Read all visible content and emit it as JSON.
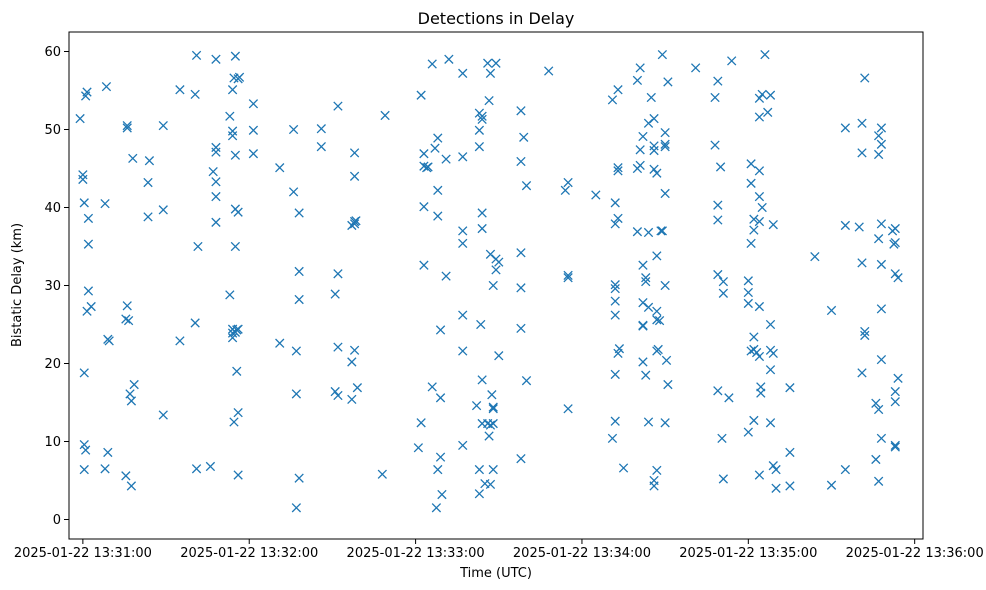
{
  "chart_data": {
    "type": "scatter",
    "title": "Detections in Delay",
    "xlabel": "Time (UTC)",
    "ylabel": "Bistatic Delay (km)",
    "marker": "x",
    "color": "#1f77b4",
    "grid": false,
    "xlim": [
      -5,
      303
    ],
    "ylim": [
      -2.5,
      62.5
    ],
    "x_unit": "seconds after 2025-01-22 13:31:00",
    "x_ticks": [
      {
        "value": 0,
        "label": "2025-01-22 13:31:00"
      },
      {
        "value": 60,
        "label": "2025-01-22 13:32:00"
      },
      {
        "value": 120,
        "label": "2025-01-22 13:33:00"
      },
      {
        "value": 180,
        "label": "2025-01-22 13:34:00"
      },
      {
        "value": 240,
        "label": "2025-01-22 13:35:00"
      },
      {
        "value": 300,
        "label": "2025-01-22 13:36:00"
      }
    ],
    "y_ticks": [
      {
        "value": 0,
        "label": "0"
      },
      {
        "value": 10,
        "label": "10"
      },
      {
        "value": 20,
        "label": "20"
      },
      {
        "value": 30,
        "label": "30"
      },
      {
        "value": 40,
        "label": "40"
      },
      {
        "value": 50,
        "label": "50"
      },
      {
        "value": 60,
        "label": "60"
      }
    ],
    "points": [
      [
        -1,
        51.4
      ],
      [
        0,
        44.2
      ],
      [
        0,
        43.6
      ],
      [
        0.5,
        40.6
      ],
      [
        0.5,
        18.8
      ],
      [
        1,
        54.3
      ],
      [
        1.5,
        54.8
      ],
      [
        0.5,
        9.6
      ],
      [
        1,
        8.9
      ],
      [
        0.5,
        6.4
      ],
      [
        2,
        38.6
      ],
      [
        2,
        35.3
      ],
      [
        2,
        29.3
      ],
      [
        1.5,
        26.7
      ],
      [
        3,
        27.3
      ],
      [
        8.5,
        55.5
      ],
      [
        8,
        40.5
      ],
      [
        9,
        23.1
      ],
      [
        9.5,
        22.9
      ],
      [
        9,
        8.6
      ],
      [
        8,
        6.5
      ],
      [
        16,
        50.5
      ],
      [
        16,
        50.2
      ],
      [
        16,
        27.4
      ],
      [
        15.5,
        25.7
      ],
      [
        16.5,
        25.5
      ],
      [
        17,
        16.1
      ],
      [
        17.5,
        15.2
      ],
      [
        17.5,
        4.3
      ],
      [
        15.5,
        5.6
      ],
      [
        18,
        46.3
      ],
      [
        18.5,
        17.3
      ],
      [
        24,
        46.0
      ],
      [
        23.5,
        43.2
      ],
      [
        23.5,
        38.8
      ],
      [
        29,
        50.5
      ],
      [
        29,
        39.7
      ],
      [
        29,
        13.4
      ],
      [
        35,
        55.1
      ],
      [
        35,
        22.9
      ],
      [
        41,
        59.5
      ],
      [
        40.5,
        54.5
      ],
      [
        41.5,
        35.0
      ],
      [
        40.5,
        25.2
      ],
      [
        41,
        6.5
      ],
      [
        46,
        6.8
      ],
      [
        48,
        59.0
      ],
      [
        47,
        44.6
      ],
      [
        48,
        47.7
      ],
      [
        48,
        47.1
      ],
      [
        48,
        43.3
      ],
      [
        48,
        41.4
      ],
      [
        48,
        38.1
      ],
      [
        53,
        51.7
      ],
      [
        54.5,
        56.6
      ],
      [
        54,
        55.1
      ],
      [
        54,
        49.8
      ],
      [
        54,
        49.2
      ],
      [
        55,
        46.7
      ],
      [
        55,
        39.8
      ],
      [
        55,
        35.0
      ],
      [
        53,
        28.8
      ],
      [
        54,
        24.4
      ],
      [
        54,
        23.9
      ],
      [
        54,
        23.3
      ],
      [
        55.5,
        24.3
      ],
      [
        56,
        24.4
      ],
      [
        55,
        24.0
      ],
      [
        54.5,
        12.5
      ],
      [
        56,
        13.7
      ],
      [
        55.5,
        19.0
      ],
      [
        56,
        5.7
      ],
      [
        55,
        59.4
      ],
      [
        56.5,
        56.7
      ],
      [
        56,
        56.5
      ],
      [
        56,
        39.4
      ],
      [
        61.5,
        53.3
      ],
      [
        61.5,
        49.9
      ],
      [
        61.5,
        46.9
      ],
      [
        71,
        45.1
      ],
      [
        71,
        22.6
      ],
      [
        76,
        50.0
      ],
      [
        76,
        42.0
      ],
      [
        78,
        39.3
      ],
      [
        78,
        31.8
      ],
      [
        78,
        28.2
      ],
      [
        77,
        21.6
      ],
      [
        77,
        16.1
      ],
      [
        78,
        5.3
      ],
      [
        77,
        1.5
      ],
      [
        86,
        50.1
      ],
      [
        86,
        47.8
      ],
      [
        92,
        53.0
      ],
      [
        92,
        31.5
      ],
      [
        91,
        28.9
      ],
      [
        92,
        22.1
      ],
      [
        91,
        16.4
      ],
      [
        92,
        15.9
      ],
      [
        97,
        20.2
      ],
      [
        97,
        15.4
      ],
      [
        98,
        47.0
      ],
      [
        98,
        44.0
      ],
      [
        98,
        38.2
      ],
      [
        97,
        37.7
      ],
      [
        98,
        37.9
      ],
      [
        98.5,
        38.3
      ],
      [
        98,
        21.7
      ],
      [
        99,
        16.9
      ],
      [
        109,
        51.8
      ],
      [
        108,
        5.8
      ],
      [
        122,
        54.4
      ],
      [
        123,
        46.9
      ],
      [
        123,
        45.3
      ],
      [
        124,
        45.1
      ],
      [
        124.5,
        45.2
      ],
      [
        123,
        40.1
      ],
      [
        123,
        32.6
      ],
      [
        122,
        12.4
      ],
      [
        121,
        9.2
      ],
      [
        126,
        58.4
      ],
      [
        127,
        47.6
      ],
      [
        128,
        48.9
      ],
      [
        128,
        42.2
      ],
      [
        128,
        38.9
      ],
      [
        129,
        24.3
      ],
      [
        129,
        15.6
      ],
      [
        129,
        8.0
      ],
      [
        128,
        6.4
      ],
      [
        127.5,
        1.5
      ],
      [
        129.5,
        3.2
      ],
      [
        126,
        17.0
      ],
      [
        131,
        46.2
      ],
      [
        131,
        31.2
      ],
      [
        132,
        59.0
      ],
      [
        137,
        57.2
      ],
      [
        137,
        46.5
      ],
      [
        137,
        37.0
      ],
      [
        137,
        35.4
      ],
      [
        137,
        26.2
      ],
      [
        137,
        21.6
      ],
      [
        137,
        9.5
      ],
      [
        142,
        14.6
      ],
      [
        143,
        52.1
      ],
      [
        144,
        51.7
      ],
      [
        144,
        51.3
      ],
      [
        143,
        49.9
      ],
      [
        143,
        47.8
      ],
      [
        144,
        39.3
      ],
      [
        144,
        37.3
      ],
      [
        143.5,
        25.0
      ],
      [
        144,
        17.9
      ],
      [
        144,
        12.3
      ],
      [
        143,
        6.4
      ],
      [
        143,
        3.3
      ],
      [
        146,
        58.5
      ],
      [
        147,
        57.2
      ],
      [
        146.5,
        53.7
      ],
      [
        147,
        34.0
      ],
      [
        147.5,
        16.0
      ],
      [
        146.5,
        10.7
      ],
      [
        146,
        12.3
      ],
      [
        147,
        12.1
      ],
      [
        148,
        12.3
      ],
      [
        148,
        14.2
      ],
      [
        148,
        14.4
      ],
      [
        145,
        4.6
      ],
      [
        147,
        4.5
      ],
      [
        148,
        6.4
      ],
      [
        148,
        30.0
      ],
      [
        149,
        33.4
      ],
      [
        149,
        32.0
      ],
      [
        150,
        33.0
      ],
      [
        150,
        21.0
      ],
      [
        149,
        58.5
      ],
      [
        158,
        52.4
      ],
      [
        158,
        45.9
      ],
      [
        159,
        49.0
      ],
      [
        160,
        42.8
      ],
      [
        158,
        34.2
      ],
      [
        158,
        29.7
      ],
      [
        158,
        24.5
      ],
      [
        158,
        7.8
      ],
      [
        160,
        17.8
      ],
      [
        168,
        57.5
      ],
      [
        174,
        42.2
      ],
      [
        175,
        43.2
      ],
      [
        175,
        31.3
      ],
      [
        175,
        31.0
      ],
      [
        175,
        14.2
      ],
      [
        185,
        41.6
      ],
      [
        191,
        53.8
      ],
      [
        193,
        55.1
      ],
      [
        193,
        45.1
      ],
      [
        193,
        44.7
      ],
      [
        192,
        40.6
      ],
      [
        193,
        38.6
      ],
      [
        192,
        37.9
      ],
      [
        192,
        30.1
      ],
      [
        192,
        29.6
      ],
      [
        192,
        28.0
      ],
      [
        192,
        26.2
      ],
      [
        192,
        18.6
      ],
      [
        192,
        12.6
      ],
      [
        193,
        21.3
      ],
      [
        193.5,
        21.9
      ],
      [
        195,
        6.6
      ],
      [
        191,
        10.4
      ],
      [
        200,
        56.3
      ],
      [
        201,
        57.9
      ],
      [
        200,
        36.9
      ],
      [
        201,
        45.4
      ],
      [
        200,
        45.0
      ],
      [
        201,
        47.4
      ],
      [
        202,
        49.1
      ],
      [
        202,
        32.6
      ],
      [
        202,
        27.8
      ],
      [
        202,
        24.9
      ],
      [
        202,
        24.8
      ],
      [
        203,
        30.5
      ],
      [
        203,
        31.0
      ],
      [
        202,
        20.2
      ],
      [
        203,
        18.5
      ],
      [
        204,
        36.8
      ],
      [
        204,
        27.2
      ],
      [
        204,
        12.5
      ],
      [
        204,
        50.8
      ],
      [
        205,
        54.1
      ],
      [
        206,
        51.4
      ],
      [
        206,
        47.9
      ],
      [
        206,
        47.3
      ],
      [
        206,
        44.9
      ],
      [
        207,
        44.4
      ],
      [
        207,
        33.8
      ],
      [
        207,
        26.7
      ],
      [
        207,
        25.6
      ],
      [
        207,
        21.6
      ],
      [
        207.5,
        21.8
      ],
      [
        207,
        6.3
      ],
      [
        206,
        5.0
      ],
      [
        206,
        4.3
      ],
      [
        208,
        25.5
      ],
      [
        208.5,
        37.0
      ],
      [
        209,
        59.6
      ],
      [
        210,
        49.6
      ],
      [
        210,
        48.1
      ],
      [
        210,
        47.8
      ],
      [
        210,
        41.8
      ],
      [
        209,
        37.0
      ],
      [
        210,
        30.0
      ],
      [
        210,
        12.4
      ],
      [
        210.5,
        20.4
      ],
      [
        211,
        17.3
      ],
      [
        211,
        56.1
      ],
      [
        221,
        57.9
      ],
      [
        228,
        54.1
      ],
      [
        229,
        56.2
      ],
      [
        228,
        48.0
      ],
      [
        229,
        40.3
      ],
      [
        229,
        38.4
      ],
      [
        229,
        31.4
      ],
      [
        230,
        45.2
      ],
      [
        231,
        30.5
      ],
      [
        231,
        29.0
      ],
      [
        229,
        16.5
      ],
      [
        230.5,
        10.4
      ],
      [
        231,
        5.2
      ],
      [
        233,
        15.6
      ],
      [
        234,
        58.8
      ],
      [
        240,
        30.6
      ],
      [
        240,
        29.1
      ],
      [
        240,
        27.7
      ],
      [
        241,
        45.6
      ],
      [
        241,
        43.1
      ],
      [
        241,
        35.4
      ],
      [
        242,
        38.5
      ],
      [
        242,
        37.1
      ],
      [
        242,
        23.4
      ],
      [
        242,
        21.8
      ],
      [
        243,
        21.4
      ],
      [
        241,
        21.6
      ],
      [
        240,
        11.2
      ],
      [
        242,
        12.7
      ],
      [
        244,
        54.0
      ],
      [
        244,
        51.6
      ],
      [
        245,
        54.5
      ],
      [
        244,
        44.7
      ],
      [
        244,
        41.4
      ],
      [
        245,
        40.0
      ],
      [
        244,
        38.2
      ],
      [
        244,
        27.3
      ],
      [
        244.5,
        17.0
      ],
      [
        244.5,
        16.2
      ],
      [
        244,
        20.9
      ],
      [
        244,
        5.7
      ],
      [
        246,
        59.6
      ],
      [
        247,
        52.2
      ],
      [
        248,
        54.4
      ],
      [
        248,
        25.0
      ],
      [
        248,
        21.7
      ],
      [
        249,
        21.3
      ],
      [
        248,
        19.2
      ],
      [
        248,
        12.4
      ],
      [
        249,
        37.8
      ],
      [
        249,
        6.9
      ],
      [
        250,
        6.4
      ],
      [
        250,
        4.0
      ],
      [
        255,
        16.9
      ],
      [
        255,
        8.6
      ],
      [
        255,
        4.3
      ],
      [
        264,
        33.7
      ],
      [
        270,
        26.8
      ],
      [
        270,
        4.4
      ],
      [
        275,
        50.2
      ],
      [
        275,
        37.7
      ],
      [
        275,
        6.4
      ],
      [
        280,
        37.5
      ],
      [
        281,
        47.0
      ],
      [
        281,
        32.9
      ],
      [
        282,
        56.6
      ],
      [
        281,
        50.8
      ],
      [
        282,
        24.1
      ],
      [
        282,
        23.6
      ],
      [
        281,
        18.8
      ],
      [
        286,
        14.9
      ],
      [
        287,
        14.1
      ],
      [
        286,
        7.7
      ],
      [
        287,
        4.9
      ],
      [
        288,
        50.2
      ],
      [
        288,
        48.1
      ],
      [
        287,
        49.2
      ],
      [
        287,
        46.8
      ],
      [
        288,
        37.9
      ],
      [
        287,
        36.0
      ],
      [
        288,
        32.7
      ],
      [
        288,
        27.0
      ],
      [
        288,
        20.5
      ],
      [
        288,
        10.4
      ],
      [
        293,
        37.3
      ],
      [
        292,
        37.0
      ],
      [
        293,
        35.5
      ],
      [
        292.5,
        35.3
      ],
      [
        293,
        31.5
      ],
      [
        294,
        31.0
      ],
      [
        294,
        18.1
      ],
      [
        293,
        16.4
      ],
      [
        293,
        15.1
      ],
      [
        293,
        9.5
      ],
      [
        293,
        9.3
      ]
    ]
  }
}
